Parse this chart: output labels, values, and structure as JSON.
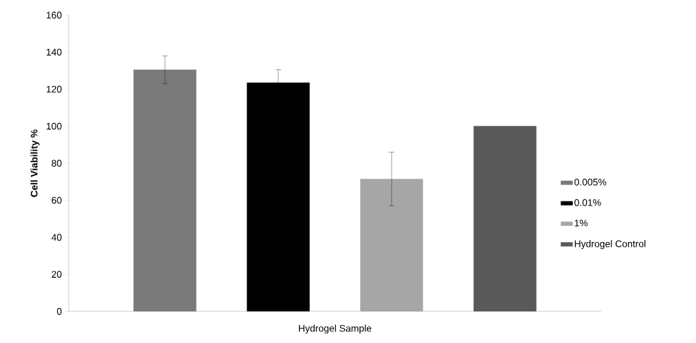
{
  "chart_data": {
    "type": "bar",
    "xlabel": "Hydrogel Sample",
    "ylabel": "Cell Viability %",
    "categories": [
      null
    ],
    "ylim": [
      0,
      160
    ],
    "yticks": [
      0,
      20,
      40,
      60,
      80,
      100,
      120,
      140,
      160
    ],
    "legend": "right",
    "series": [
      {
        "name": "0.005%",
        "color": "#7a7a7a",
        "values": [
          130.5
        ],
        "errors": [
          7.5
        ]
      },
      {
        "name": "0.01%",
        "color": "#000000",
        "values": [
          123.5
        ],
        "errors": [
          7
        ]
      },
      {
        "name": "1%",
        "color": "#a6a6a6",
        "values": [
          71.5
        ],
        "errors": [
          14.5
        ]
      },
      {
        "name": "Hydrogel Control",
        "color": "#595959",
        "values": [
          100
        ]
      }
    ]
  }
}
